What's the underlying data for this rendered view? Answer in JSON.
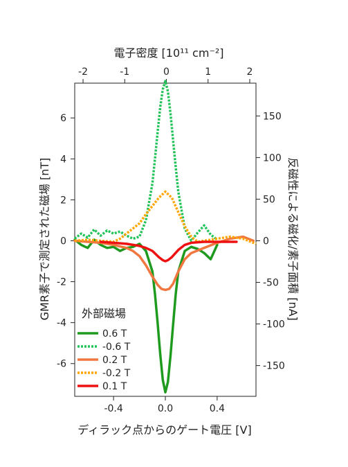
{
  "chart_data": {
    "type": "line",
    "top_axis": {
      "label": "電子密度 [10¹¹ cm⁻²]",
      "ticks": [
        -2,
        -1,
        0,
        1,
        2
      ],
      "tick_labels": [
        "-2",
        "-1",
        "0",
        "1",
        "2"
      ],
      "range": [
        -2.2,
        2.15
      ]
    },
    "bottom_axis": {
      "label": "ディラック点からのゲート電圧 [V]",
      "ticks": [
        -0.4,
        0.0,
        0.4
      ],
      "tick_labels": [
        "-0.4",
        "0.0",
        "0.4"
      ],
      "range": [
        -0.7,
        0.7
      ]
    },
    "left_axis": {
      "label": "GMR素子で測定された磁場 [nT]",
      "ticks": [
        -6,
        -4,
        -2,
        0,
        2,
        4,
        6
      ],
      "tick_labels": [
        "-6",
        "-4",
        "-2",
        "0",
        "2",
        "4",
        "6"
      ],
      "range": [
        -7.6,
        7.7
      ]
    },
    "right_axis": {
      "label": "反磁性による磁化/素子面積 [nA]",
      "ticks": [
        -150,
        -100,
        -50,
        0,
        50,
        100,
        150
      ],
      "tick_labels": [
        "-150",
        "-100",
        "-50",
        "0",
        "50",
        "100",
        "150"
      ]
    },
    "legend": {
      "title": "外部磁場",
      "position": "bottom-left"
    },
    "series": [
      {
        "name": "0.6 T",
        "color": "#1e9a1e",
        "dash": "solid",
        "x": [
          -0.7,
          -0.65,
          -0.6,
          -0.55,
          -0.5,
          -0.45,
          -0.4,
          -0.35,
          -0.3,
          -0.25,
          -0.2,
          -0.15,
          -0.1,
          -0.08,
          -0.06,
          -0.04,
          -0.02,
          0.0,
          0.02,
          0.04,
          0.06,
          0.08,
          0.1,
          0.15,
          0.2,
          0.25,
          0.3,
          0.35,
          0.4
        ],
        "y": [
          0.05,
          -0.2,
          -0.35,
          0.05,
          -0.2,
          -0.35,
          -0.3,
          -0.5,
          -0.35,
          -0.3,
          -0.15,
          -0.5,
          -1.5,
          -2.6,
          -4.0,
          -5.5,
          -6.8,
          -7.4,
          -6.9,
          -5.6,
          -4.1,
          -2.6,
          -1.5,
          -0.5,
          -0.3,
          -0.4,
          -0.6,
          -0.9,
          -0.2
        ]
      },
      {
        "name": "-0.6 T",
        "color": "#22c45a",
        "dash": "dotted",
        "x": [
          -0.7,
          -0.65,
          -0.6,
          -0.55,
          -0.5,
          -0.45,
          -0.4,
          -0.35,
          -0.3,
          -0.25,
          -0.2,
          -0.15,
          -0.1,
          -0.08,
          -0.06,
          -0.04,
          -0.02,
          0.0,
          0.02,
          0.04,
          0.06,
          0.08,
          0.1,
          0.15,
          0.2,
          0.25,
          0.3,
          0.35,
          0.4
        ],
        "y": [
          0.1,
          0.35,
          0.15,
          0.55,
          0.25,
          0.5,
          0.35,
          0.45,
          0.25,
          0.1,
          0.2,
          1.0,
          2.8,
          4.0,
          5.3,
          6.5,
          7.4,
          7.8,
          7.3,
          6.2,
          4.9,
          3.6,
          2.4,
          0.6,
          0.0,
          0.4,
          0.75,
          0.3,
          0.05
        ]
      },
      {
        "name": "0.2 T",
        "color": "#f07840",
        "dash": "solid",
        "x": [
          -0.7,
          -0.6,
          -0.5,
          -0.4,
          -0.3,
          -0.25,
          -0.2,
          -0.15,
          -0.1,
          -0.06,
          -0.03,
          0.0,
          0.03,
          0.06,
          0.1,
          0.15,
          0.2,
          0.3,
          0.4,
          0.5,
          0.6,
          0.68
        ],
        "y": [
          0.0,
          -0.05,
          -0.1,
          -0.2,
          -0.35,
          -0.5,
          -0.75,
          -1.2,
          -1.75,
          -2.15,
          -2.35,
          -2.4,
          -2.35,
          -2.1,
          -1.5,
          -0.9,
          -0.6,
          -0.35,
          -0.1,
          0.1,
          0.2,
          0.0
        ]
      },
      {
        "name": "-0.2 T",
        "color": "#ffa500",
        "dash": "dotted",
        "x": [
          -0.7,
          -0.6,
          -0.5,
          -0.4,
          -0.35,
          -0.3,
          -0.25,
          -0.2,
          -0.15,
          -0.1,
          -0.05,
          0.0,
          0.05,
          0.1,
          0.15,
          0.2,
          0.25,
          0.3,
          0.4,
          0.5,
          0.6,
          0.7
        ],
        "y": [
          0.0,
          0.05,
          0.0,
          -0.05,
          0.1,
          0.35,
          0.6,
          0.85,
          1.3,
          1.7,
          2.1,
          2.4,
          2.1,
          1.4,
          0.7,
          0.2,
          -0.05,
          0.0,
          0.1,
          0.2,
          0.1,
          -0.15
        ]
      },
      {
        "name": "0.1 T",
        "color": "#ee1111",
        "dash": "solid",
        "x": [
          -0.5,
          -0.4,
          -0.3,
          -0.2,
          -0.15,
          -0.1,
          -0.05,
          -0.02,
          0.0,
          0.02,
          0.05,
          0.1,
          0.15,
          0.2,
          0.3,
          0.4,
          0.5,
          0.55
        ],
        "y": [
          -0.05,
          -0.1,
          -0.15,
          -0.25,
          -0.35,
          -0.5,
          -0.8,
          -0.95,
          -1.0,
          -0.95,
          -0.8,
          -0.45,
          -0.2,
          -0.1,
          -0.05,
          -0.05,
          -0.05,
          -0.05
        ]
      }
    ]
  }
}
